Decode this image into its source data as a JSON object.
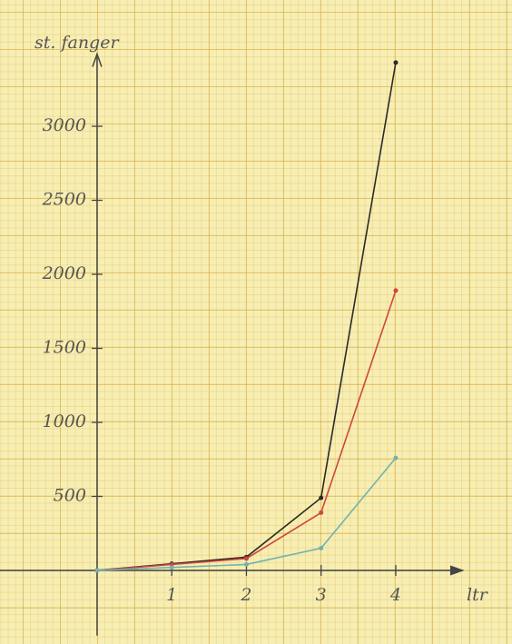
{
  "chart_data": {
    "type": "line",
    "y_label": "st. fanger",
    "x_label": "ltr",
    "x": [
      0,
      1,
      2,
      3,
      4
    ],
    "series": [
      {
        "color": "#2a2a2a",
        "values": [
          0,
          45,
          90,
          490,
          3430
        ]
      },
      {
        "color": "#d0463c",
        "values": [
          0,
          40,
          80,
          390,
          1890
        ]
      },
      {
        "color": "#6fb3b0",
        "values": [
          0,
          20,
          40,
          150,
          760
        ]
      }
    ],
    "xlim": [
      -1.3,
      4.9
    ],
    "xticks": [
      1,
      2,
      3,
      4
    ],
    "ylim": [
      -440,
      3500
    ],
    "yticks": [
      500,
      1000,
      1500,
      2000,
      2500,
      3000
    ]
  }
}
